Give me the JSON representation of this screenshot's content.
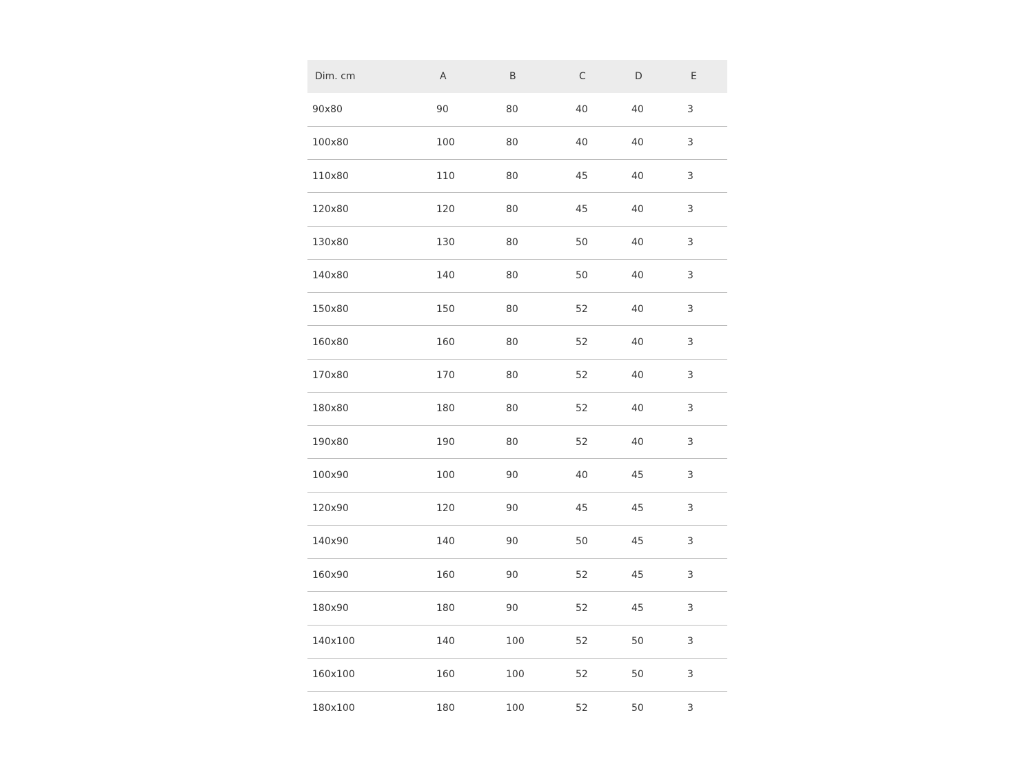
{
  "table": {
    "headers": [
      "Dim. cm",
      "A",
      "B",
      "C",
      "D",
      "E"
    ],
    "rows": [
      [
        "90x80",
        "90",
        "80",
        "40",
        "40",
        "3"
      ],
      [
        "100x80",
        "100",
        "80",
        "40",
        "40",
        "3"
      ],
      [
        "110x80",
        "110",
        "80",
        "45",
        "40",
        "3"
      ],
      [
        "120x80",
        "120",
        "80",
        "45",
        "40",
        "3"
      ],
      [
        "130x80",
        "130",
        "80",
        "50",
        "40",
        "3"
      ],
      [
        "140x80",
        "140",
        "80",
        "50",
        "40",
        "3"
      ],
      [
        "150x80",
        "150",
        "80",
        "52",
        "40",
        "3"
      ],
      [
        "160x80",
        "160",
        "80",
        "52",
        "40",
        "3"
      ],
      [
        "170x80",
        "170",
        "80",
        "52",
        "40",
        "3"
      ],
      [
        "180x80",
        "180",
        "80",
        "52",
        "40",
        "3"
      ],
      [
        "190x80",
        "190",
        "80",
        "52",
        "40",
        "3"
      ],
      [
        "100x90",
        "100",
        "90",
        "40",
        "45",
        "3"
      ],
      [
        "120x90",
        "120",
        "90",
        "45",
        "45",
        "3"
      ],
      [
        "140x90",
        "140",
        "90",
        "50",
        "45",
        "3"
      ],
      [
        "160x90",
        "160",
        "90",
        "52",
        "45",
        "3"
      ],
      [
        "180x90",
        "180",
        "90",
        "52",
        "45",
        "3"
      ],
      [
        "140x100",
        "140",
        "100",
        "52",
        "50",
        "3"
      ],
      [
        "160x100",
        "160",
        "100",
        "52",
        "50",
        "3"
      ],
      [
        "180x100",
        "180",
        "100",
        "52",
        "50",
        "3"
      ]
    ]
  }
}
